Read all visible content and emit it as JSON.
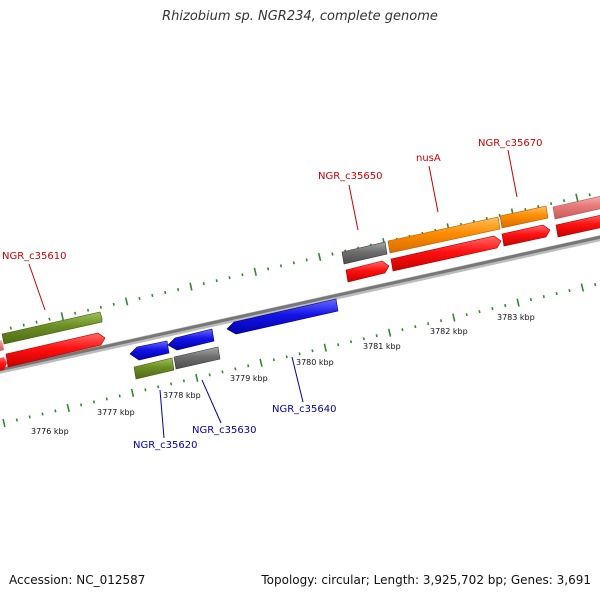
{
  "title": "Rhizobium sp. NGR234, complete genome",
  "footer": {
    "accession": "Accession: NC_012587",
    "summary": "Topology: circular; Length: 3,925,702 bp; Genes: 3,691"
  },
  "colors": {
    "backbone": "#8a8a8a",
    "tick": "#2e8b2e",
    "red": "#ff1111",
    "orange": "#ff8c00",
    "olive": "#6b8e23",
    "grey": "#6e6e6e",
    "pink": "#e87a7a",
    "blue": "#1414e6",
    "label_red": "#cc0000",
    "label_blue": "#0000aa"
  },
  "scale": {
    "unit": "kbp",
    "ticks": [
      {
        "text": "3776 kbp"
      },
      {
        "text": "3777 kbp"
      },
      {
        "text": "3778 kbp"
      },
      {
        "text": "3779 kbp"
      },
      {
        "text": "3780 kbp"
      },
      {
        "text": "3781 kbp"
      },
      {
        "text": "3782 kbp"
      },
      {
        "text": "3783 kbp"
      }
    ]
  },
  "gene_labels": {
    "ngr_c35610": "NGR_c35610",
    "ngr_c35650": "NGR_c35650",
    "nusA": "nusA",
    "ngr_c35670": "NGR_c35670",
    "ngr_c35620": "NGR_c35620",
    "ngr_c35630": "NGR_c35630",
    "ngr_c35640": "NGR_c35640"
  }
}
